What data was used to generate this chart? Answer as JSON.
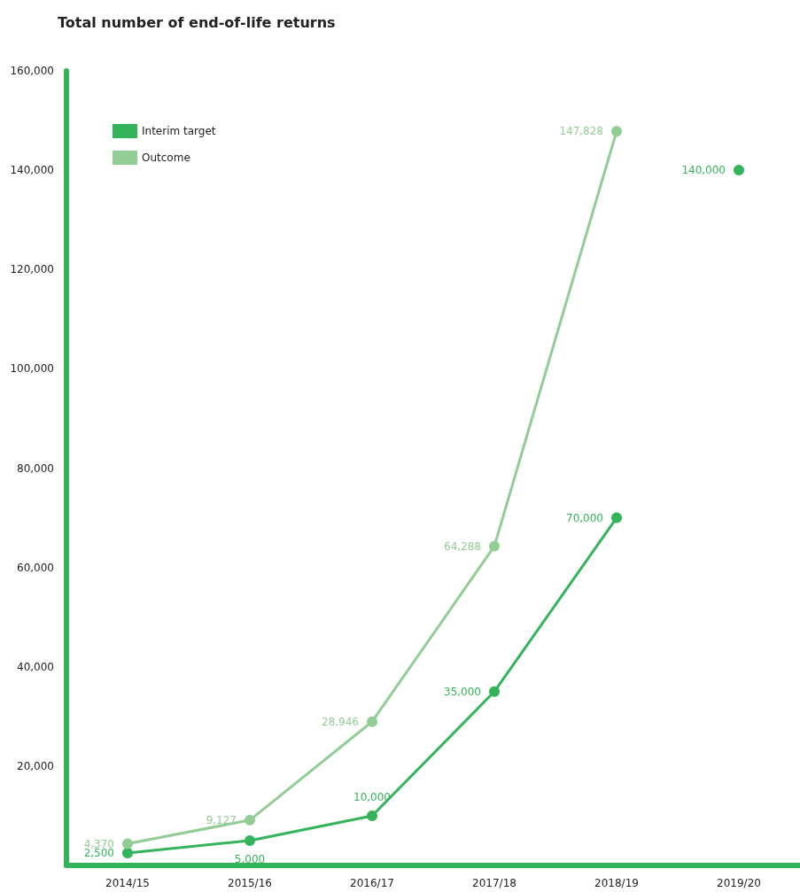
{
  "chart_data": {
    "type": "line",
    "title": "Total number of end-of-life returns",
    "categories": [
      "2014/15",
      "2015/16",
      "2016/17",
      "2017/18",
      "2018/19",
      "2019/20"
    ],
    "series": [
      {
        "name": "Interim target",
        "color": "#34b45a",
        "values": [
          2500,
          5000,
          10000,
          35000,
          70000,
          null
        ],
        "value_labels": [
          "2,500",
          "5,000",
          "10,000",
          "35,000",
          "70,000",
          null
        ]
      },
      {
        "name": "Outcome",
        "color": "#92cd96",
        "values": [
          4370,
          9127,
          28946,
          64288,
          147828,
          null
        ],
        "value_labels": [
          "4,370",
          "9,127",
          "28,946",
          "64,288",
          "147,828",
          null
        ]
      },
      {
        "type": "scatter",
        "color": "#34b45a",
        "values": [
          null,
          null,
          null,
          null,
          null,
          140000
        ],
        "value_labels": [
          null,
          null,
          null,
          null,
          null,
          "140,000"
        ]
      }
    ],
    "ylim": [
      0,
      160000
    ],
    "yticks": [
      {
        "value": 20000,
        "label": "20,000"
      },
      {
        "value": 40000,
        "label": "40,000"
      },
      {
        "value": 60000,
        "label": "60,000"
      },
      {
        "value": 80000,
        "label": "80,000"
      },
      {
        "value": 100000,
        "label": "100,000"
      },
      {
        "value": 120000,
        "label": "120,000"
      },
      {
        "value": 140000,
        "label": "140,000"
      },
      {
        "value": 160000,
        "label": "160,000"
      }
    ],
    "grid": false,
    "legend": "top left",
    "marker": "circle",
    "line_style": "solid"
  }
}
